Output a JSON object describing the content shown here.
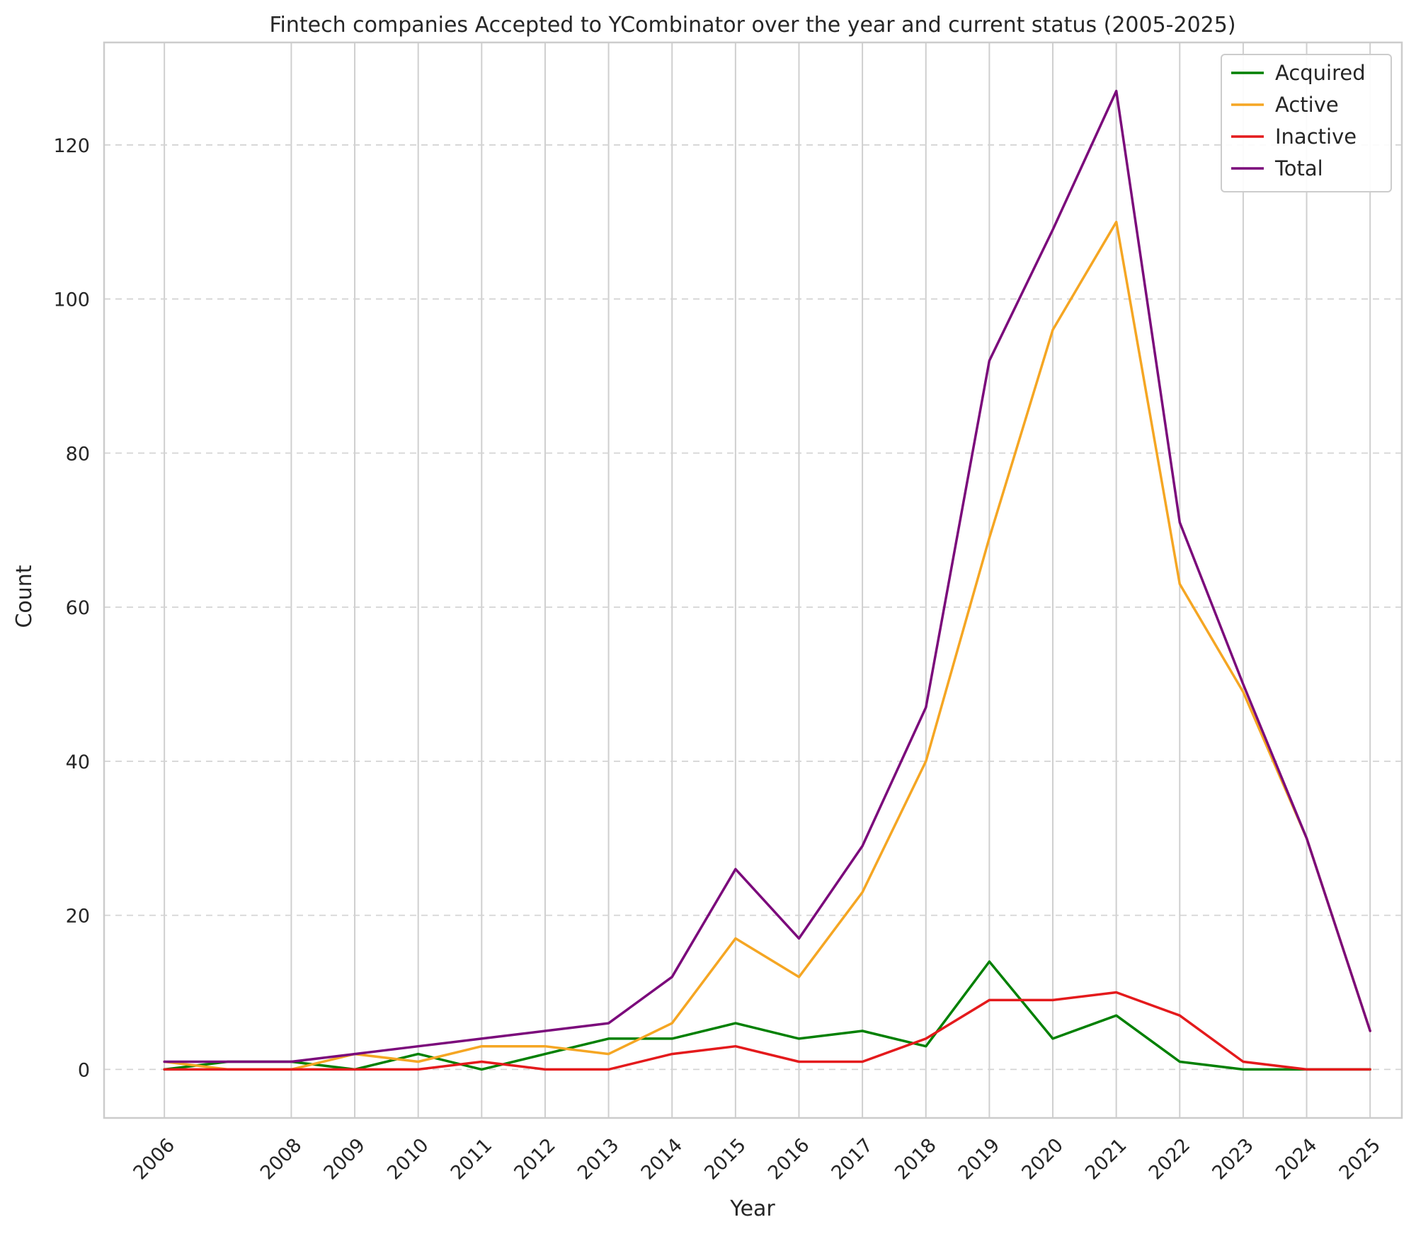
{
  "chart_data": {
    "type": "line",
    "title": "Fintech companies Accepted to YCombinator over the year and current status (2005-2025)",
    "xlabel": "Year",
    "ylabel": "Count",
    "x": [
      2006,
      2007,
      2008,
      2009,
      2010,
      2011,
      2012,
      2013,
      2014,
      2015,
      2016,
      2017,
      2018,
      2019,
      2020,
      2021,
      2022,
      2023,
      2024,
      2025
    ],
    "x_tick_labels": [
      "2006",
      "2008",
      "2009",
      "2010",
      "2011",
      "2012",
      "2013",
      "2014",
      "2015",
      "2016",
      "2017",
      "2018",
      "2019",
      "2020",
      "2021",
      "2022",
      "2023",
      "2024",
      "2025"
    ],
    "xlim": [
      2005.05,
      2025.5
    ],
    "ylim": [
      -6.3,
      133.3
    ],
    "yticks": [
      0,
      20,
      40,
      60,
      80,
      100,
      120
    ],
    "grid": "vertical solid, horizontal dashed",
    "legend_position": "top-right",
    "series": [
      {
        "name": "Acquired",
        "color": "#008000",
        "values": [
          0,
          1,
          1,
          0,
          2,
          0,
          2,
          4,
          4,
          6,
          4,
          5,
          3,
          14,
          4,
          7,
          1,
          0,
          0,
          0
        ]
      },
      {
        "name": "Active",
        "color": "#f5a623",
        "values": [
          1,
          0,
          0,
          2,
          1,
          3,
          3,
          2,
          6,
          17,
          12,
          23,
          40,
          69,
          96,
          110,
          63,
          49,
          30,
          5
        ]
      },
      {
        "name": "Inactive",
        "color": "#e41a1c",
        "values": [
          0,
          0,
          0,
          0,
          0,
          1,
          0,
          0,
          2,
          3,
          1,
          1,
          4,
          9,
          9,
          10,
          7,
          1,
          0,
          0
        ]
      },
      {
        "name": "Total",
        "color": "#7b0a7b",
        "values": [
          1,
          1,
          1,
          2,
          3,
          4,
          5,
          6,
          12,
          26,
          17,
          29,
          47,
          92,
          109,
          127,
          71,
          50,
          30,
          5
        ]
      }
    ]
  }
}
